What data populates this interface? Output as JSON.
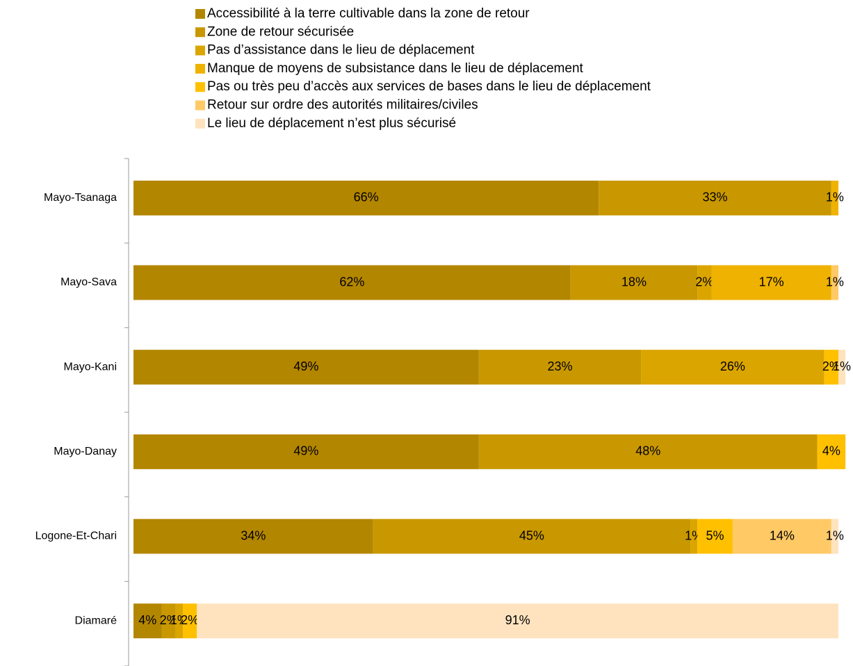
{
  "chart_data": {
    "type": "stacked_barh",
    "categories": [
      "Mayo-Tsanaga",
      "Mayo-Sava",
      "Mayo-Kani",
      "Mayo-Danay",
      "Logone-Et-Chari",
      "Diamaré"
    ],
    "xlim": [
      0,
      100
    ],
    "series": [
      {
        "name": "Accessibilité à la terre cultivable dans la zone de retour",
        "color": "#b38600",
        "values": [
          66,
          62,
          49,
          49,
          34,
          4
        ],
        "value_labels": [
          "66%",
          "62%",
          "49%",
          "49%",
          "34%",
          "4%"
        ]
      },
      {
        "name": "Zone de retour sécurisée",
        "color": "#c99800",
        "values": [
          33,
          18,
          23,
          48,
          45,
          2
        ],
        "value_labels": [
          "33%",
          "18%",
          "23%",
          "48%",
          "45%",
          "2%"
        ]
      },
      {
        "name": "Pas d’assistance dans le lieu de déplacement",
        "color": "#dba500",
        "values": [
          null,
          2,
          26,
          null,
          1,
          1
        ],
        "value_labels": [
          null,
          "2%",
          "26%",
          null,
          "1%",
          "1%"
        ]
      },
      {
        "name": "Manque de moyens de subsistance dans le lieu de déplacement",
        "color": "#efb200",
        "values": [
          1,
          17,
          null,
          null,
          null,
          null
        ],
        "value_labels": [
          "1%",
          "17%",
          null,
          null,
          null,
          null
        ]
      },
      {
        "name": "Pas ou très peu d’accès aux services de bases dans le lieu de déplacement",
        "color": "#ffc000",
        "values": [
          null,
          null,
          2,
          4,
          5,
          2
        ],
        "value_labels": [
          null,
          null,
          "2%",
          "4%",
          "5%",
          "2%"
        ]
      },
      {
        "name": "Retour sur ordre des autorités militaires/civiles",
        "color": "#ffc966",
        "values": [
          null,
          1,
          null,
          null,
          14,
          null
        ],
        "value_labels": [
          null,
          "1%",
          null,
          null,
          "14%",
          null
        ]
      },
      {
        "name": "Le lieu de déplacement n’est plus sécurisé",
        "color": "#ffe3bf",
        "values": [
          null,
          null,
          1,
          null,
          1,
          91
        ],
        "value_labels": [
          null,
          null,
          "1%",
          null,
          "1%",
          "91%"
        ]
      }
    ]
  }
}
